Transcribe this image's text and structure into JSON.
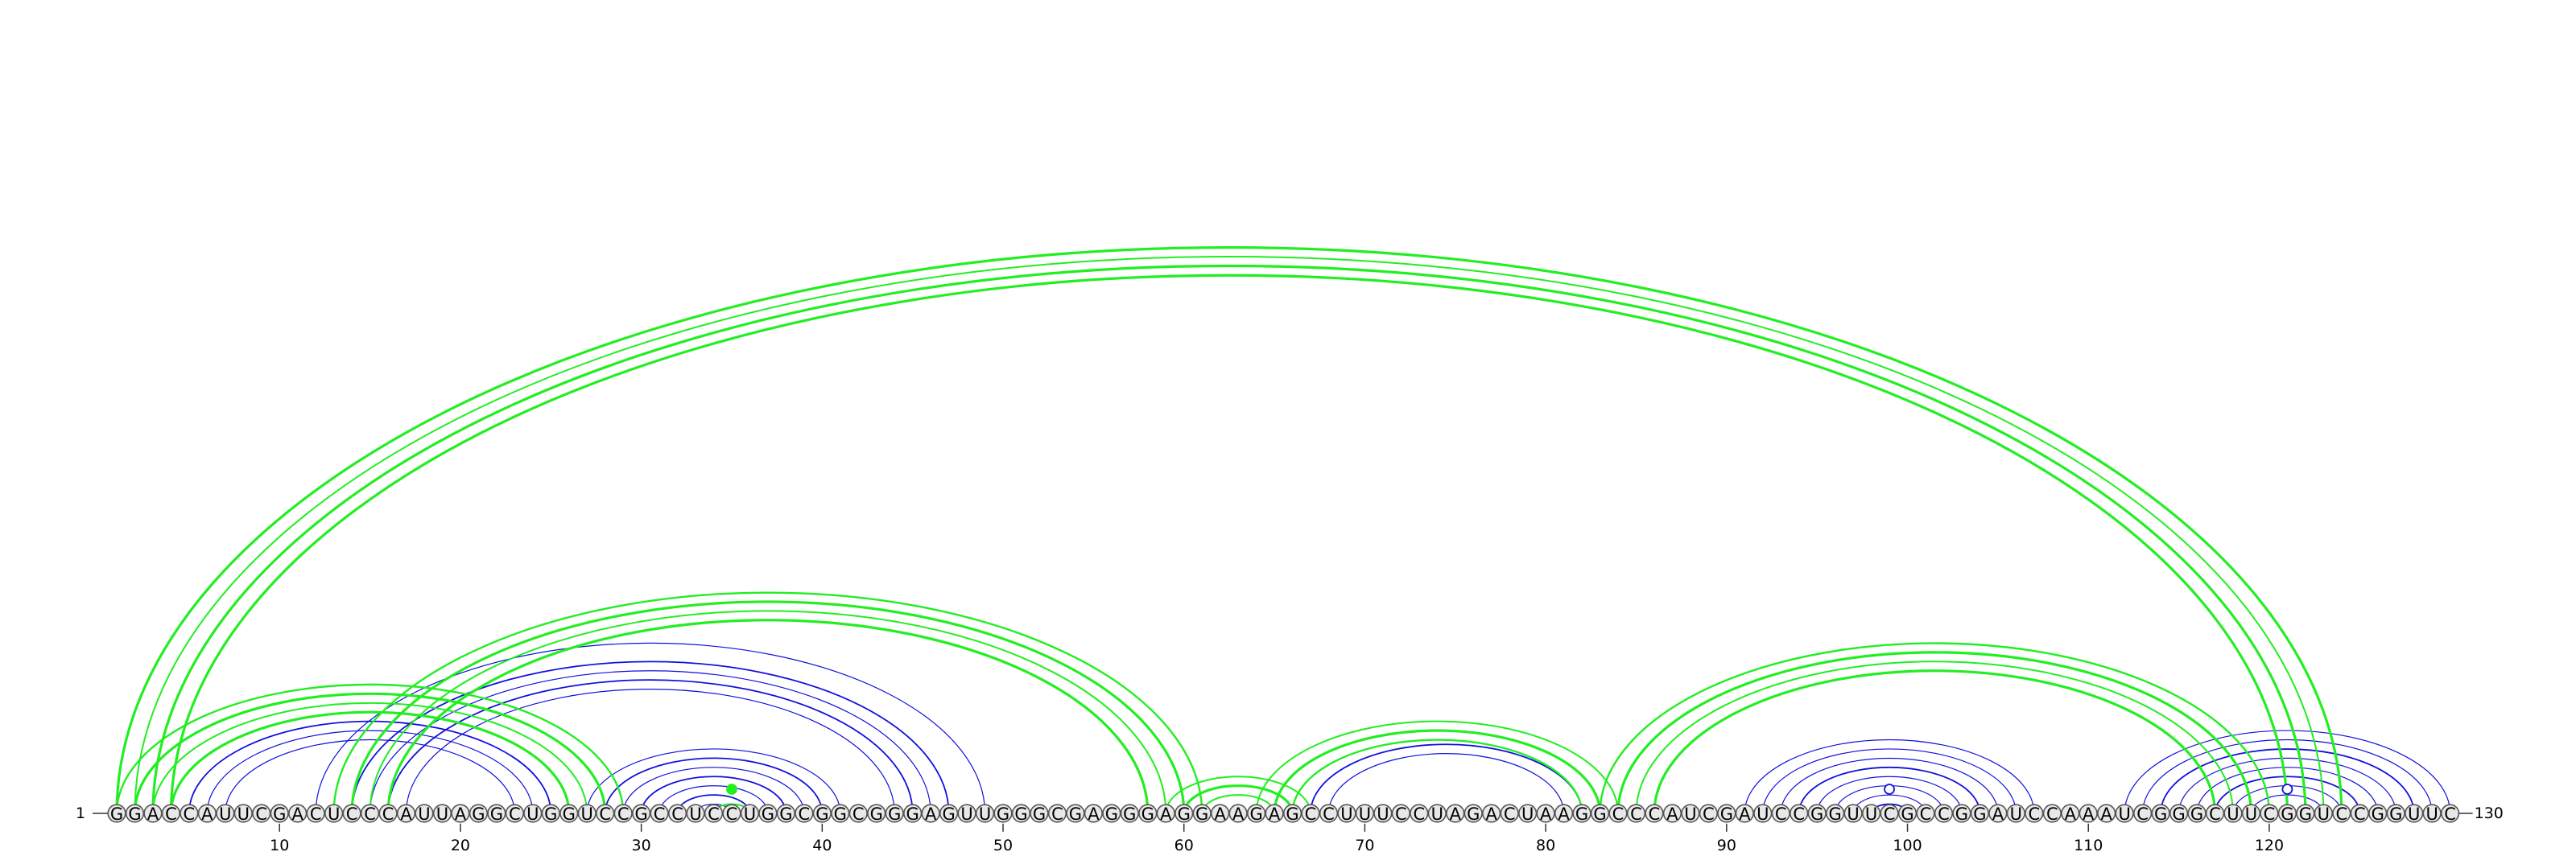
{
  "sequence": "GGACCAUUCGACUCCCAUUAGGCUGGUCCGCCUCCUGGCGGCGGGAGUUGGGCGAGGGAGGAAGAGCCUUUCCUAGACUAAGGCCCAUCGAUCCGGUUCGCCGGAUCCAAAUCGGGCUUCGGUCCGGUUC",
  "start_label": "1",
  "end_label": "130",
  "ticks": [
    10,
    20,
    30,
    40,
    50,
    60,
    70,
    80,
    90,
    100,
    110,
    120
  ],
  "colors": {
    "blue": "#1010dd",
    "green": "#22ee22"
  },
  "arcs": [
    {
      "color": "blue",
      "pairs": [
        [
          5,
          25,
          1.8
        ],
        [
          6,
          24,
          1.2
        ],
        [
          7,
          23,
          1.2
        ],
        [
          12,
          49,
          1.2
        ],
        [
          14,
          47,
          1.8
        ],
        [
          15,
          46,
          1.2
        ],
        [
          16,
          45,
          1.8
        ],
        [
          17,
          44,
          1.2
        ],
        [
          27,
          41,
          1.2
        ],
        [
          28,
          40,
          1.8
        ],
        [
          29,
          39,
          1.2
        ],
        [
          30,
          38,
          1.8
        ],
        [
          31,
          37,
          1.2
        ],
        [
          32,
          36,
          1.8
        ],
        [
          33,
          35,
          1.2
        ],
        [
          67,
          82,
          1.8
        ],
        [
          68,
          81,
          1.2
        ],
        [
          91,
          107,
          1.2
        ],
        [
          92,
          106,
          1.2
        ],
        [
          93,
          105,
          1.2
        ],
        [
          94,
          104,
          1.8
        ],
        [
          95,
          103,
          1.2
        ],
        [
          96,
          102,
          1.2
        ],
        [
          97,
          101,
          1.2
        ],
        [
          98,
          100,
          1.8
        ],
        [
          112,
          130,
          1.2
        ],
        [
          113,
          129,
          1.2
        ],
        [
          114,
          128,
          1.8
        ],
        [
          115,
          127,
          1.2
        ],
        [
          116,
          126,
          1.2
        ],
        [
          117,
          125,
          1.8
        ],
        [
          118,
          124,
          1.2
        ],
        [
          119,
          123,
          1.2
        ]
      ]
    },
    {
      "color": "green",
      "pairs": [
        [
          1,
          124,
          3.2
        ],
        [
          2,
          123,
          2.0
        ],
        [
          3,
          122,
          3.2
        ],
        [
          4,
          121,
          3.2
        ],
        [
          1,
          29,
          2.4
        ],
        [
          2,
          28,
          3.2
        ],
        [
          3,
          27,
          2.0
        ],
        [
          4,
          26,
          3.2
        ],
        [
          13,
          61,
          2.4
        ],
        [
          14,
          60,
          3.2
        ],
        [
          15,
          59,
          2.0
        ],
        [
          16,
          58,
          3.2
        ],
        [
          59,
          67,
          2.0
        ],
        [
          60,
          66,
          3.2
        ],
        [
          61,
          65,
          2.0
        ],
        [
          64,
          84,
          2.0
        ],
        [
          65,
          83,
          3.2
        ],
        [
          66,
          82,
          2.4
        ],
        [
          83,
          120,
          2.4
        ],
        [
          84,
          119,
          3.2
        ],
        [
          85,
          118,
          2.0
        ],
        [
          86,
          117,
          3.2
        ],
        [
          34,
          36,
          2.2
        ]
      ]
    }
  ],
  "markers": [
    {
      "nuc": 35,
      "color": "green",
      "filled": true
    },
    {
      "nuc": 99,
      "color": "blue",
      "filled": false
    },
    {
      "nuc": 121,
      "color": "blue",
      "filled": false
    }
  ]
}
